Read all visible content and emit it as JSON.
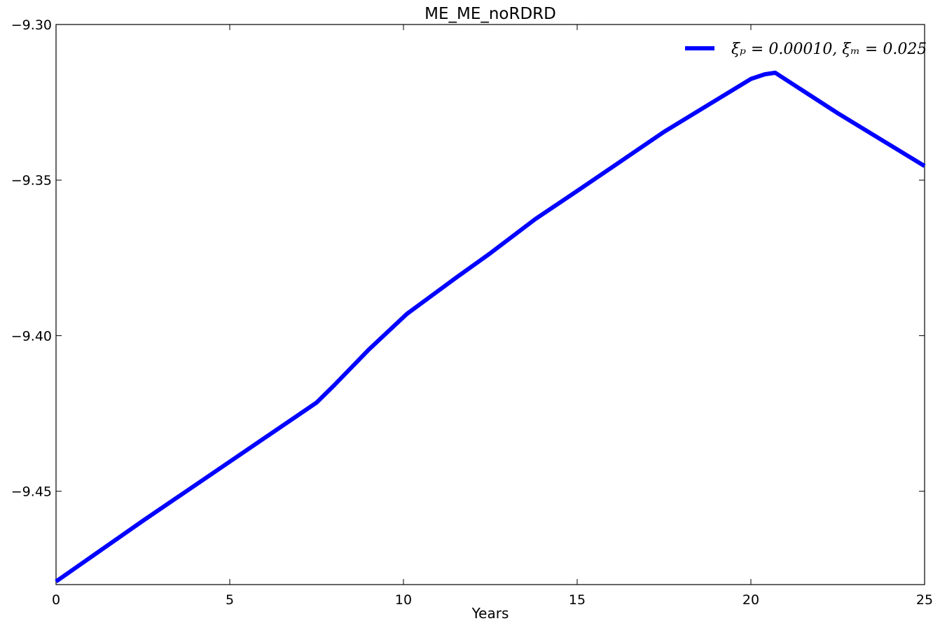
{
  "chart_data": {
    "type": "line",
    "title": "ME_ME_noRDRD",
    "xlabel": "Years",
    "ylabel": "",
    "xlim": [
      0,
      25
    ],
    "ylim": [
      -9.48,
      -9.3
    ],
    "x_ticks": [
      0,
      5,
      10,
      15,
      20,
      25
    ],
    "x_tick_labels": [
      "0",
      "5",
      "10",
      "15",
      "20",
      "25"
    ],
    "y_ticks": [
      -9.3,
      -9.35,
      -9.4,
      -9.45
    ],
    "y_tick_labels": [
      "−9.30",
      "−9.35",
      "−9.40",
      "−9.45"
    ],
    "grid": false,
    "legend_position": "top-right",
    "series": [
      {
        "name": "ξₚ = 0.00010, ξₘ = 0.025",
        "color": "#0000ff",
        "x": [
          0,
          2.5,
          5,
          7.5,
          8.0,
          9.0,
          10.1,
          11.5,
          12.5,
          13.8,
          15.0,
          17.5,
          20.0,
          20.4,
          20.7,
          22.5,
          25.0
        ],
        "y": [
          -9.479,
          -9.4595,
          -9.4405,
          -9.4215,
          -9.416,
          -9.4045,
          -9.393,
          -9.3815,
          -9.3735,
          -9.3625,
          -9.3535,
          -9.3345,
          -9.3175,
          -9.316,
          -9.3155,
          -9.3285,
          -9.3455
        ]
      }
    ]
  }
}
